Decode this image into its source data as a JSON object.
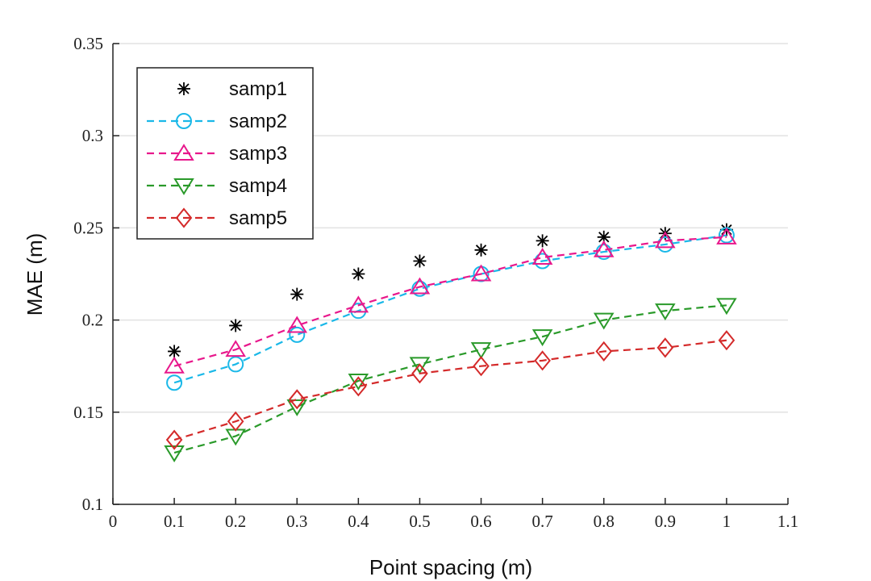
{
  "chart_data": {
    "type": "line",
    "title": "",
    "xlabel": "Point spacing (m)",
    "ylabel": "MAE (m)",
    "xlim": [
      0,
      1.1
    ],
    "ylim": [
      0.1,
      0.35
    ],
    "xticks": [
      "0",
      "0.1",
      "0.2",
      "0.3",
      "0.4",
      "0.5",
      "0.6",
      "0.7",
      "0.8",
      "0.9",
      "1",
      "1.1"
    ],
    "yticks": [
      "0.1",
      "0.15",
      "0.2",
      "0.25",
      "0.3",
      "0.35"
    ],
    "grid": "horizontal",
    "legend_position": "top-left",
    "x": [
      0.1,
      0.2,
      0.3,
      0.4,
      0.5,
      0.6,
      0.7,
      0.8,
      0.9,
      1.0
    ],
    "series": [
      {
        "name": "samp1",
        "marker": "asterisk",
        "line": "none",
        "color": "#000000",
        "values": [
          0.183,
          0.197,
          0.214,
          0.225,
          0.232,
          0.238,
          0.243,
          0.245,
          0.247,
          0.249
        ]
      },
      {
        "name": "samp2",
        "marker": "circle",
        "line": "dashed",
        "color": "#1ab8e8",
        "values": [
          0.166,
          0.176,
          0.192,
          0.205,
          0.217,
          0.225,
          0.232,
          0.237,
          0.241,
          0.246
        ]
      },
      {
        "name": "samp3",
        "marker": "triangle-up",
        "line": "dashed",
        "color": "#e8188c",
        "values": [
          0.175,
          0.184,
          0.197,
          0.208,
          0.218,
          0.225,
          0.234,
          0.238,
          0.243,
          0.245
        ]
      },
      {
        "name": "samp4",
        "marker": "triangle-down",
        "line": "dashed",
        "color": "#2a9a2a",
        "values": [
          0.128,
          0.137,
          0.153,
          0.167,
          0.176,
          0.184,
          0.191,
          0.2,
          0.205,
          0.208
        ]
      },
      {
        "name": "samp5",
        "marker": "diamond",
        "line": "dashed",
        "color": "#d42a2a",
        "values": [
          0.135,
          0.145,
          0.157,
          0.164,
          0.171,
          0.175,
          0.178,
          0.183,
          0.185,
          0.189
        ]
      }
    ]
  }
}
